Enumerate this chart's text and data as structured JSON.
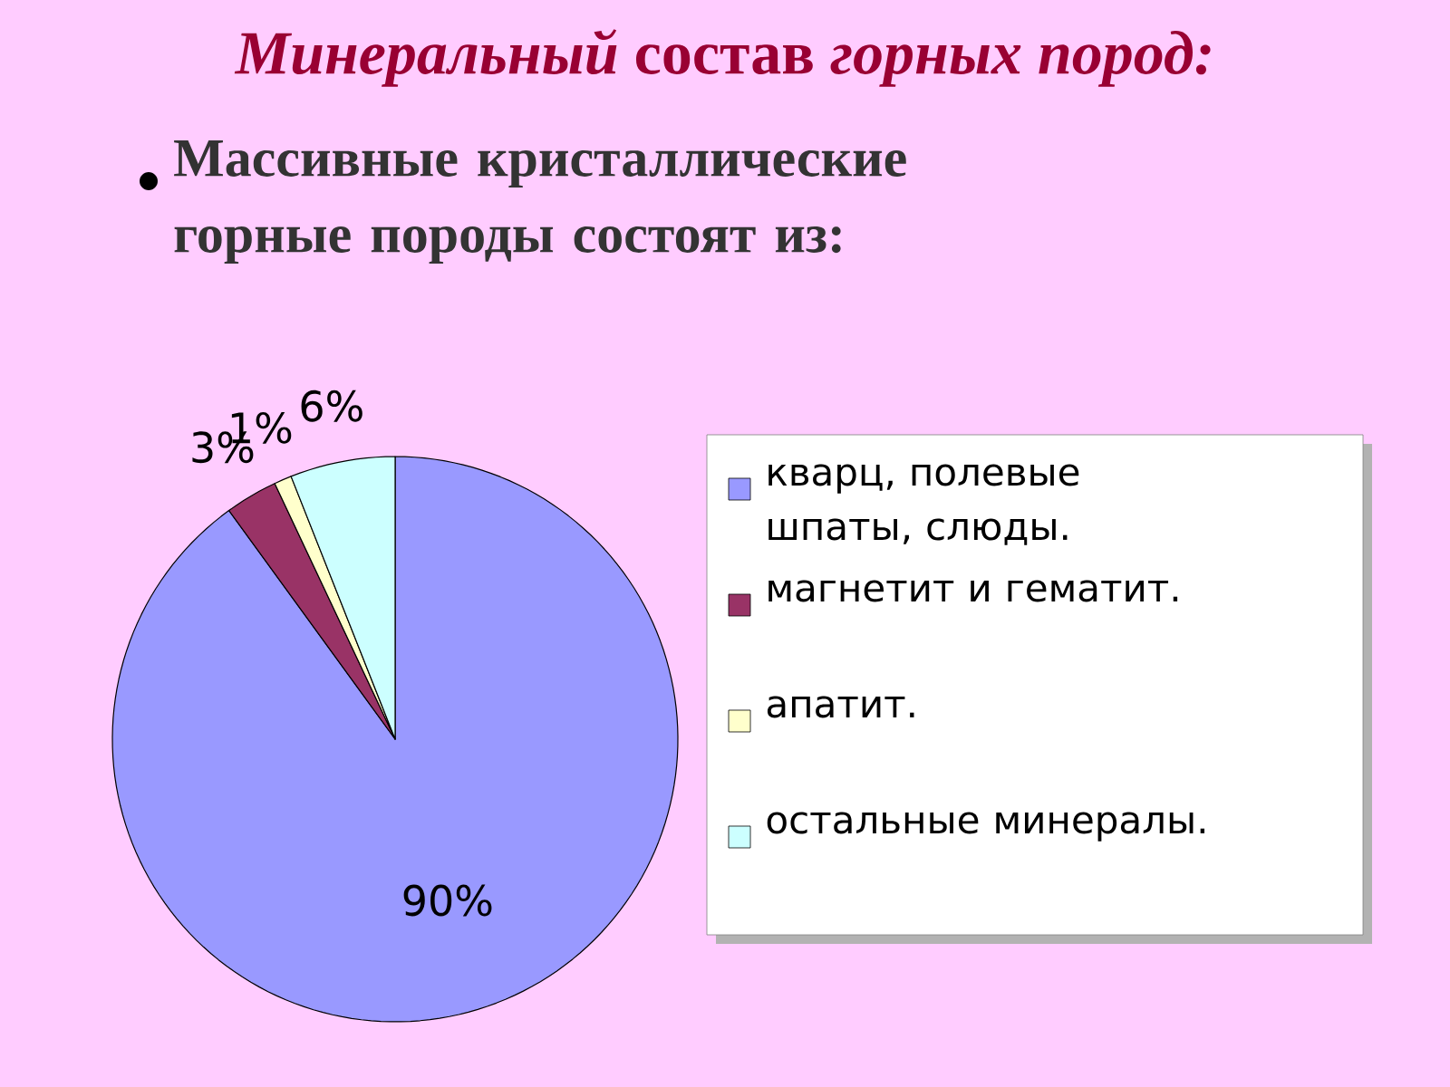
{
  "chart_data": {
    "type": "pie",
    "title": "*Минеральный* состав *горных пород:*",
    "subtitle": "Массивные кристаллические горные породы состоят из:",
    "categories": [
      "кварц, полевые шпаты, слюды.",
      "магнетит и гематит.",
      "апатит.",
      "остальные минералы."
    ],
    "values": [
      90,
      3,
      1,
      6
    ],
    "value_labels": [
      "90%",
      "3%",
      "1%",
      "6%"
    ],
    "colors": [
      "#9999ff",
      "#993366",
      "#ffffcc",
      "#ccffff"
    ],
    "legend": "right"
  }
}
